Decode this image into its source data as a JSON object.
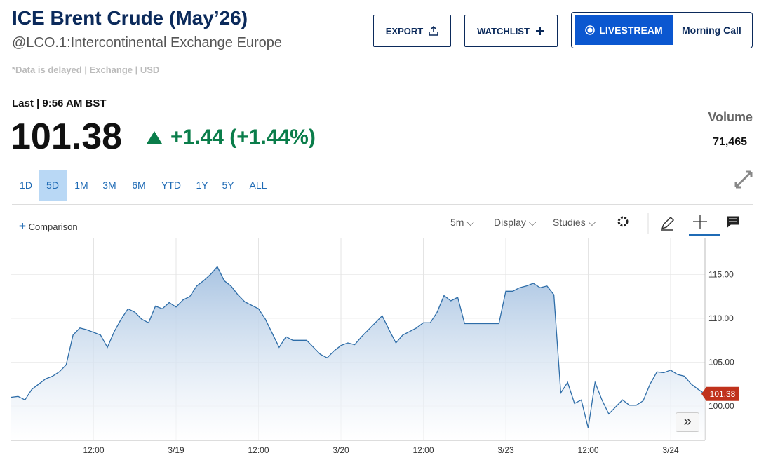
{
  "header": {
    "title": "ICE Brent Crude (May’26)",
    "subtitle": "@LCO.1:Intercontinental Exchange Europe",
    "note": "*Data is delayed | Exchange | USD"
  },
  "buttons": {
    "export": "EXPORT",
    "watchlist": "WATCHLIST",
    "livestream": "LIVESTREAM",
    "morning_call": "Morning Call"
  },
  "quote": {
    "last_label": "Last | 9:56 AM BST",
    "price": "101.38",
    "change": "+1.44",
    "change_pct": "(+1.44%)",
    "volume_label": "Volume",
    "volume": "71,465"
  },
  "ranges": {
    "items": [
      "1D",
      "5D",
      "1M",
      "3M",
      "6M",
      "YTD",
      "1Y",
      "5Y",
      "ALL"
    ],
    "active": "5D"
  },
  "toolbar": {
    "comparison": "Comparison",
    "interval": "5m",
    "display": "Display",
    "studies": "Studies"
  },
  "chart_data": {
    "type": "line",
    "x": [
      -24,
      -23,
      -22,
      -21,
      -20,
      -19,
      -18,
      -17,
      -16,
      -15,
      -14,
      -13,
      -12,
      -11,
      -10,
      -9,
      -8,
      -7,
      -6,
      -5,
      -4,
      -3,
      -2,
      -1,
      0,
      1,
      2,
      3,
      4,
      5,
      6,
      7,
      8,
      9,
      10,
      11,
      12,
      13,
      14,
      15,
      16,
      17,
      18,
      19,
      20,
      21,
      22,
      23,
      24,
      25,
      26,
      27,
      28,
      29,
      30,
      31,
      32,
      33,
      34,
      35,
      36,
      37,
      38,
      39,
      40,
      41,
      42,
      43,
      44,
      45,
      46,
      47,
      48,
      49,
      50,
      51,
      52,
      53,
      54,
      55,
      56,
      57,
      58,
      59,
      60,
      61,
      62,
      63,
      64,
      65,
      66,
      67,
      68,
      69,
      70,
      71,
      72,
      73,
      74,
      75,
      76,
      77
    ],
    "series": [
      {
        "color": "#2e6da8",
        "values": [
          101.0,
          101.1,
          100.7,
          101.9,
          102.5,
          103.1,
          103.4,
          103.9,
          104.7,
          108.1,
          108.9,
          108.7,
          108.4,
          108.1,
          106.7,
          108.5,
          109.9,
          111.1,
          110.7,
          109.9,
          109.5,
          111.4,
          111.1,
          111.8,
          111.3,
          112.1,
          112.5,
          113.7,
          114.3,
          115.0,
          115.9,
          114.3,
          113.7,
          112.7,
          111.9,
          111.5,
          111.1,
          109.9,
          108.3,
          106.7,
          107.9,
          107.5,
          107.5,
          107.5,
          106.7,
          105.9,
          105.5,
          106.3,
          106.9,
          107.2,
          107.0,
          107.9,
          108.7,
          109.5,
          110.3,
          108.7,
          107.2,
          108.1,
          108.5,
          108.9,
          109.5,
          109.5,
          110.7,
          112.6,
          112.0,
          112.4,
          109.4,
          109.4,
          109.4,
          109.4,
          109.4,
          109.4,
          113.1,
          113.1,
          113.5,
          113.7,
          114.0,
          113.5,
          113.7,
          112.7,
          101.5,
          102.7,
          100.3,
          100.7,
          97.5,
          102.7,
          100.7,
          99.1,
          99.9,
          100.7,
          100.1,
          100.1,
          100.6,
          102.5,
          103.9,
          103.8,
          104.1,
          103.6,
          103.4,
          102.5,
          101.9,
          101.38
        ]
      }
    ],
    "xlim": [
      -24,
      77
    ],
    "xticks": [
      {
        "value": -12,
        "label": "12:00"
      },
      {
        "value": 0,
        "label": "3/19"
      },
      {
        "value": 12,
        "label": "12:00"
      },
      {
        "value": 24,
        "label": "3/20"
      },
      {
        "value": 36,
        "label": "12:00"
      },
      {
        "value": 48,
        "label": "3/23"
      },
      {
        "value": 60,
        "label": "12:00"
      },
      {
        "value": 72,
        "label": "3/24"
      }
    ],
    "ylim": [
      96.08,
      119.12
    ],
    "yticks": [
      {
        "value": 100,
        "label": "100.00"
      },
      {
        "value": 105,
        "label": "105.00"
      },
      {
        "value": 110,
        "label": "110.00"
      },
      {
        "value": 115,
        "label": "115.00"
      }
    ],
    "grid": true,
    "last_badge_color": "#c0321c"
  }
}
